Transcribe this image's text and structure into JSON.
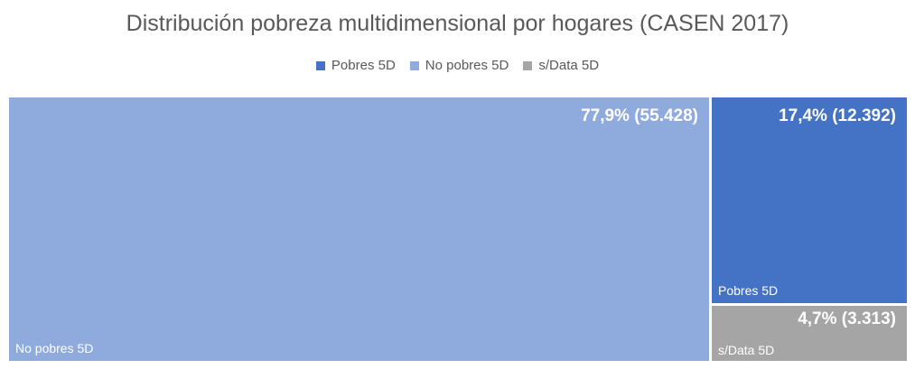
{
  "chart_data": {
    "type": "treemap",
    "title": "Distribución pobreza multidimensional por hogares (CASEN 2017)",
    "legend": {
      "position": "top",
      "entries": [
        {
          "name": "Pobres 5D",
          "color": "#4472C4"
        },
        {
          "name": "No pobres 5D",
          "color": "#8FAADC"
        },
        {
          "name": "s/Data 5D",
          "color": "#A5A5A5"
        }
      ]
    },
    "nodes": [
      {
        "name": "No pobres 5D",
        "value": 55428,
        "percent": 77.9,
        "value_label": "77,9% (55.428)",
        "color": "#8FAADC"
      },
      {
        "name": "Pobres 5D",
        "value": 12392,
        "percent": 17.4,
        "value_label": "17,4% (12.392)",
        "color": "#4472C4"
      },
      {
        "name": "s/Data 5D",
        "value": 3313,
        "percent": 4.7,
        "value_label": "4,7% (3.313)",
        "color": "#A5A5A5"
      }
    ]
  }
}
